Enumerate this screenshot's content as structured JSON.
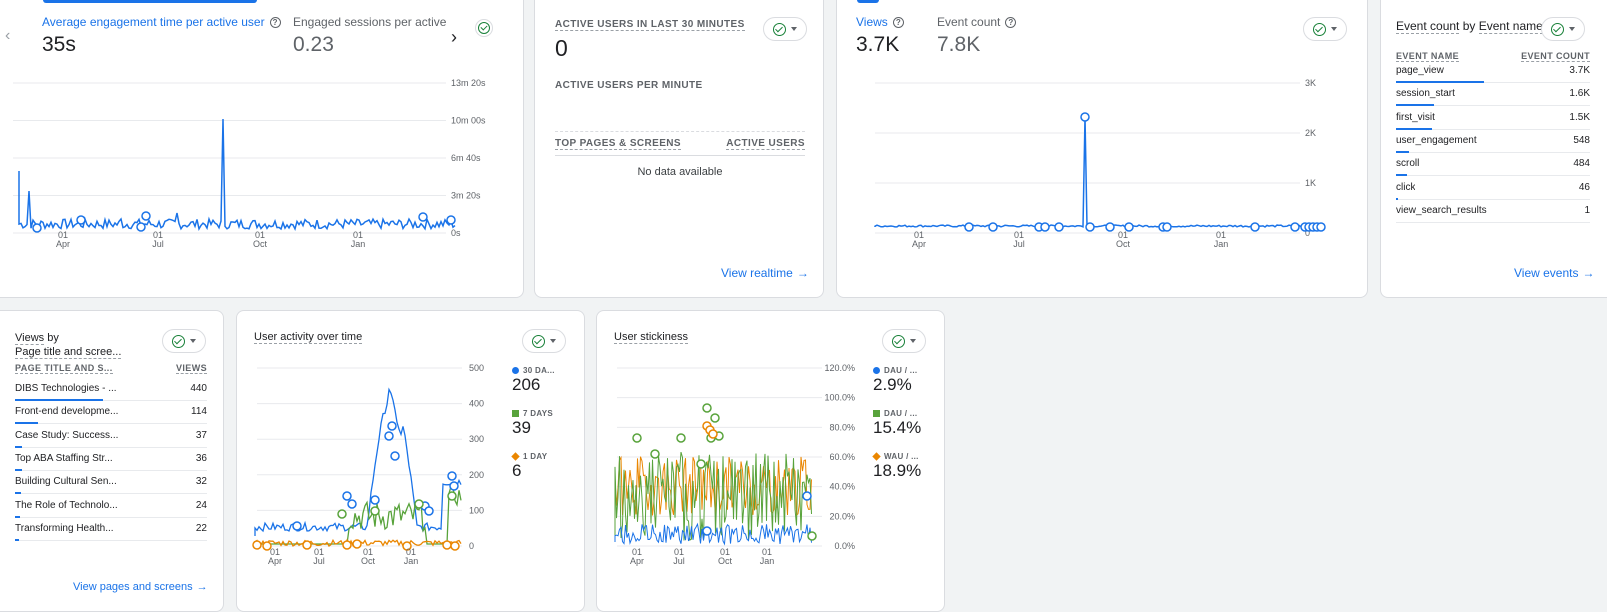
{
  "colors": {
    "blue": "#1a73e8",
    "green": "#188038",
    "series_blue": "#1a73e8",
    "series_green": "#58a33b",
    "series_orange": "#ea8600"
  },
  "card_engagement": {
    "metric1_label": "Average engagement time per active user",
    "metric1_value": "35s",
    "metric2_label": "Engaged sessions per active us",
    "metric2_value": "0.23",
    "prev_icon": "chevron-left-icon",
    "next_icon": "chevron-right-icon",
    "y_ticks": [
      "13m 20s",
      "10m 00s",
      "6m 40s",
      "3m 20s",
      "0s"
    ],
    "x_ticks": [
      {
        "day": "01",
        "month": "Apr"
      },
      {
        "day": "01",
        "month": "Jul"
      },
      {
        "day": "01",
        "month": "Oct"
      },
      {
        "day": "01",
        "month": "Jan"
      }
    ]
  },
  "card_realtime": {
    "title": "ACTIVE USERS IN LAST 30 MINUTES",
    "value": "0",
    "per_minute_label": "ACTIVE USERS PER MINUTE",
    "col_left": "TOP PAGES & SCREENS",
    "col_right": "ACTIVE USERS",
    "empty_text": "No data available",
    "link": "View realtime"
  },
  "card_views": {
    "metric1_label": "Views",
    "metric1_value": "3.7K",
    "metric2_label": "Event count",
    "metric2_value": "7.8K",
    "y_ticks": [
      "3K",
      "2K",
      "1K",
      "0"
    ],
    "x_ticks": [
      {
        "day": "01",
        "month": "Apr"
      },
      {
        "day": "01",
        "month": "Jul"
      },
      {
        "day": "01",
        "month": "Oct"
      },
      {
        "day": "01",
        "month": "Jan"
      }
    ]
  },
  "card_events": {
    "title_part1": "Event count",
    "title_by": "by",
    "title_part2": "Event name",
    "col_left": "EVENT NAME",
    "col_right": "EVENT COUNT",
    "rows": [
      {
        "name": "page_view",
        "value": "3.7K",
        "share": 1.0
      },
      {
        "name": "session_start",
        "value": "1.6K",
        "share": 0.43
      },
      {
        "name": "first_visit",
        "value": "1.5K",
        "share": 0.41
      },
      {
        "name": "user_engagement",
        "value": "548",
        "share": 0.15
      },
      {
        "name": "scroll",
        "value": "484",
        "share": 0.13
      },
      {
        "name": "click",
        "value": "46",
        "share": 0.012
      },
      {
        "name": "view_search_results",
        "value": "1",
        "share": 0.0
      }
    ],
    "link": "View events"
  },
  "card_pages": {
    "title_part1": "Views",
    "title_by": "by",
    "title_part2": "Page title and scree...",
    "col_left": "PAGE TITLE AND S...",
    "col_right": "VIEWS",
    "rows": [
      {
        "name": "DIBS Technologies - ...",
        "value": "440",
        "share": 1.0
      },
      {
        "name": "Front-end developme...",
        "value": "114",
        "share": 0.26
      },
      {
        "name": "Case Study: Success...",
        "value": "37",
        "share": 0.084
      },
      {
        "name": "Top ABA Staffing Str...",
        "value": "36",
        "share": 0.082
      },
      {
        "name": "Building Cultural Sen...",
        "value": "32",
        "share": 0.073
      },
      {
        "name": "The Role of Technolo...",
        "value": "24",
        "share": 0.055
      },
      {
        "name": "Transforming Health...",
        "value": "22",
        "share": 0.05
      }
    ],
    "link": "View pages and screens"
  },
  "card_activity": {
    "title": "User activity over time",
    "y_ticks": [
      "500",
      "400",
      "300",
      "200",
      "100",
      "0"
    ],
    "x_ticks": [
      {
        "day": "01",
        "month": "Apr"
      },
      {
        "day": "01",
        "month": "Jul"
      },
      {
        "day": "01",
        "month": "Oct"
      },
      {
        "day": "01",
        "month": "Jan"
      }
    ],
    "legend": [
      {
        "label": "30 DA...",
        "value": "206",
        "color": "#1a73e8",
        "shape": "circle"
      },
      {
        "label": "7 DAYS",
        "value": "39",
        "color": "#58a33b",
        "shape": "square"
      },
      {
        "label": "1 DAY",
        "value": "6",
        "color": "#ea8600",
        "shape": "diamond"
      }
    ]
  },
  "card_stickiness": {
    "title": "User stickiness",
    "y_ticks": [
      "120.0%",
      "100.0%",
      "80.0%",
      "60.0%",
      "40.0%",
      "20.0%",
      "0.0%"
    ],
    "x_ticks": [
      {
        "day": "01",
        "month": "Apr"
      },
      {
        "day": "01",
        "month": "Jul"
      },
      {
        "day": "01",
        "month": "Oct"
      },
      {
        "day": "01",
        "month": "Jan"
      }
    ],
    "legend": [
      {
        "label": "DAU / ...",
        "value": "2.9%",
        "color": "#1a73e8",
        "shape": "circle"
      },
      {
        "label": "DAU / ...",
        "value": "15.4%",
        "color": "#58a33b",
        "shape": "square"
      },
      {
        "label": "WAU / ...",
        "value": "18.9%",
        "color": "#ea8600",
        "shape": "diamond"
      }
    ]
  }
}
